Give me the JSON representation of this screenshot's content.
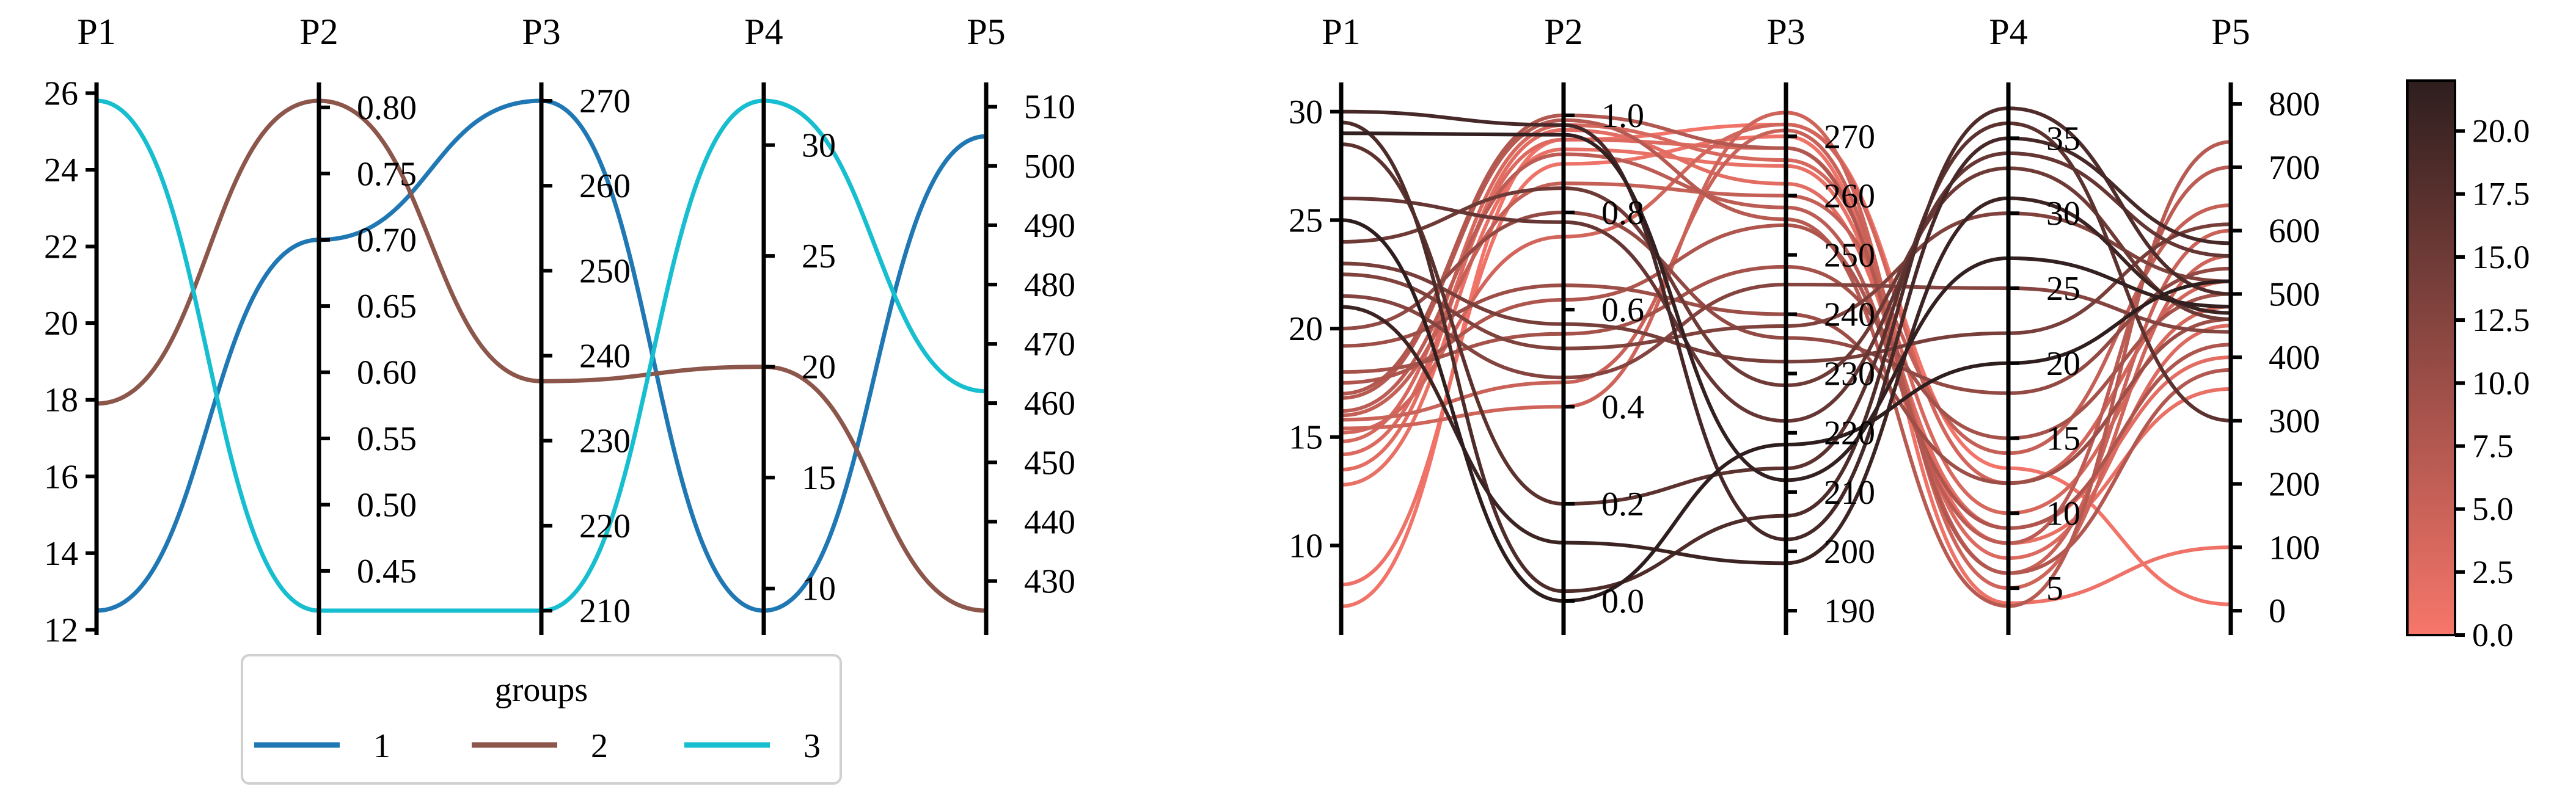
{
  "chart_data": [
    {
      "type": "parallel-coordinates",
      "axes": [
        {
          "label": "P1",
          "range": [
            12.5,
            25.8
          ],
          "ticks": [
            12,
            14,
            16,
            18,
            20,
            22,
            24,
            26
          ],
          "tick_side": "left"
        },
        {
          "label": "P2",
          "range": [
            0.42,
            0.805
          ],
          "ticks": [
            0.45,
            0.5,
            0.55,
            0.6,
            0.65,
            0.7,
            0.75,
            0.8
          ],
          "tick_labels": [
            "0.45",
            "0.50",
            "0.55",
            "0.60",
            "0.65",
            "0.70",
            "0.75",
            "0.80"
          ],
          "tick_side": "right"
        },
        {
          "label": "P3",
          "range": [
            210,
            270
          ],
          "ticks": [
            210,
            220,
            230,
            240,
            250,
            260,
            270
          ],
          "tick_side": "right"
        },
        {
          "label": "P4",
          "range": [
            9,
            32
          ],
          "ticks": [
            10,
            15,
            20,
            25,
            30
          ],
          "tick_side": "right"
        },
        {
          "label": "P5",
          "range": [
            425,
            511
          ],
          "ticks": [
            430,
            440,
            450,
            460,
            470,
            480,
            490,
            500,
            510
          ],
          "tick_side": "right"
        }
      ],
      "series": [
        {
          "name": "1",
          "color": "#1f77b4",
          "values": [
            12.5,
            0.7,
            270,
            9,
            505
          ]
        },
        {
          "name": "2",
          "color": "#8c564b",
          "values": [
            17.9,
            0.805,
            237,
            20,
            425
          ]
        },
        {
          "name": "3",
          "color": "#17becf",
          "values": [
            25.8,
            0.42,
            210,
            32,
            462
          ]
        }
      ],
      "legend": {
        "title": "groups",
        "placement": "bottom",
        "ncol": 3
      }
    },
    {
      "type": "parallel-coordinates",
      "axes": [
        {
          "label": "P1",
          "range": [
            7,
            30.5
          ],
          "ticks": [
            10,
            15,
            20,
            25,
            30
          ],
          "tick_side": "left"
        },
        {
          "label": "P2",
          "range": [
            -0.02,
            1.03
          ],
          "ticks": [
            0.0,
            0.2,
            0.4,
            0.6,
            0.8,
            1.0
          ],
          "tick_labels": [
            "0.0",
            "0.2",
            "0.4",
            "0.6",
            "0.8",
            "1.0"
          ],
          "tick_side": "right"
        },
        {
          "label": "P3",
          "range": [
            190,
            276
          ],
          "ticks": [
            190,
            200,
            210,
            220,
            230,
            240,
            250,
            260,
            270
          ],
          "tick_side": "right"
        },
        {
          "label": "P4",
          "range": [
            3.5,
            37.5
          ],
          "ticks": [
            5,
            10,
            15,
            20,
            25,
            30,
            35
          ],
          "tick_side": "right"
        },
        {
          "label": "P5",
          "range": [
            0,
            805
          ],
          "ticks": [
            0,
            100,
            200,
            300,
            400,
            500,
            600,
            700,
            800
          ],
          "tick_side": "right"
        }
      ],
      "colorbar": {
        "min": 0,
        "max": 22,
        "ticks": [
          0.0,
          2.5,
          5.0,
          7.5,
          10.0,
          12.5,
          15.0,
          17.5,
          20.0
        ],
        "tick_labels": [
          "0.0",
          "2.5",
          "5.0",
          "7.5",
          "10.0",
          "12.5",
          "15.0",
          "17.5",
          "20.0"
        ],
        "color_low": "#f7766a",
        "color_high": "#2e1e1e"
      },
      "lines": [
        {
          "c": 0.5,
          "values": [
            7.2,
            0.95,
            272,
            13,
            10
          ]
        },
        {
          "c": 1.0,
          "values": [
            8.2,
            0.9,
            270,
            4,
            100
          ]
        },
        {
          "c": 1.5,
          "values": [
            12.8,
            0.93,
            265,
            8,
            350
          ]
        },
        {
          "c": 2.2,
          "values": [
            13.5,
            0.97,
            262,
            9,
            400
          ]
        },
        {
          "c": 3.0,
          "values": [
            14.2,
            0.95,
            268,
            7,
            450
          ]
        },
        {
          "c": 3.5,
          "values": [
            14.8,
            0.98,
            266,
            10,
            480
          ]
        },
        {
          "c": 4.0,
          "values": [
            15.2,
            0.75,
            272,
            12,
            520
          ]
        },
        {
          "c": 4.5,
          "values": [
            15.4,
            0.4,
            274,
            5,
            560
          ]
        },
        {
          "c": 5.0,
          "values": [
            15.8,
            0.45,
            271,
            6,
            600
          ]
        },
        {
          "c": 5.5,
          "values": [
            16.0,
            0.86,
            260,
            14,
            640
          ]
        },
        {
          "c": 6.5,
          "values": [
            16.2,
            0.92,
            258,
            8,
            700
          ]
        },
        {
          "c": 7.0,
          "values": [
            16.8,
            0.99,
            256,
            3.8,
            740
          ]
        },
        {
          "c": 7.5,
          "values": [
            17.0,
            1.0,
            268,
            6,
            380
          ]
        },
        {
          "c": 8.0,
          "values": [
            17.5,
            0.62,
            255,
            9,
            420
          ]
        },
        {
          "c": 9.0,
          "values": [
            18.0,
            0.55,
            248,
            15,
            500
          ]
        },
        {
          "c": 10.0,
          "values": [
            19.2,
            0.65,
            240,
            12,
            460
          ]
        },
        {
          "c": 11.0,
          "values": [
            20.0,
            0.8,
            236,
            18,
            540
          ]
        },
        {
          "c": 12.5,
          "values": [
            21.5,
            0.46,
            245,
            25,
            440
          ]
        },
        {
          "c": 13.0,
          "values": [
            22.5,
            0.52,
            238,
            30,
            520
          ]
        },
        {
          "c": 14.0,
          "values": [
            23.0,
            0.57,
            232,
            22,
            610
          ]
        },
        {
          "c": 15.0,
          "values": [
            24.0,
            0.85,
            228,
            33,
            460
          ]
        },
        {
          "c": 16.0,
          "values": [
            26.0,
            0.78,
            222,
            34,
            560
          ]
        },
        {
          "c": 17.0,
          "values": [
            28.5,
            0.2,
            214,
            36,
            300
          ]
        },
        {
          "c": 18.5,
          "values": [
            29.5,
            0.02,
            206,
            37,
            500
          ]
        },
        {
          "c": 19.5,
          "values": [
            30.0,
            0.98,
            202,
            35,
            580
          ]
        },
        {
          "c": 20.5,
          "values": [
            21.0,
            0.12,
            198,
            31,
            470
          ]
        },
        {
          "c": 21.5,
          "values": [
            29.0,
            0.96,
            212,
            27,
            480
          ]
        },
        {
          "c": 22.0,
          "values": [
            25.0,
            0.0,
            218,
            20,
            520
          ]
        }
      ]
    }
  ]
}
